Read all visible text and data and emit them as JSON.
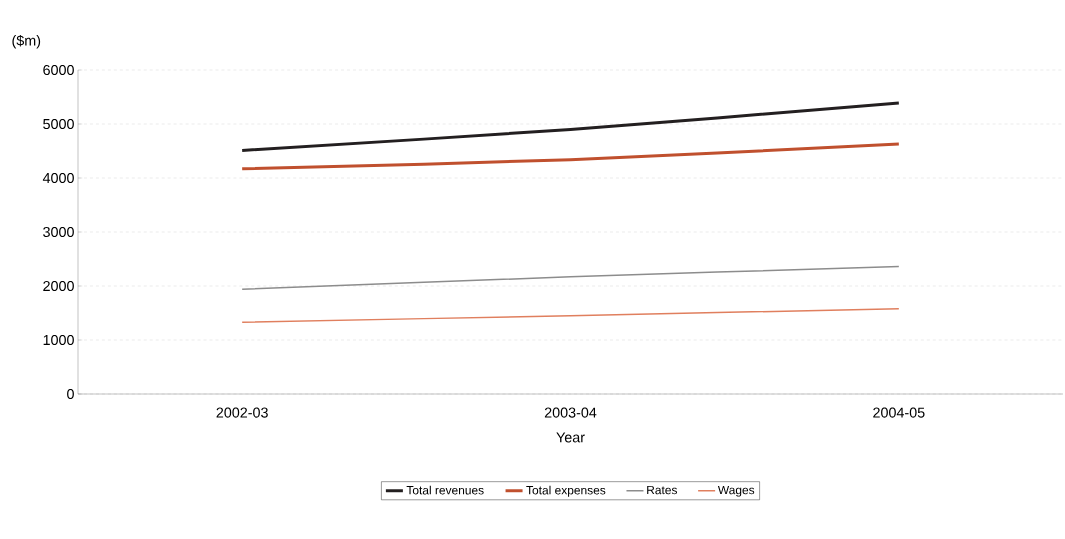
{
  "chart_data": {
    "type": "line",
    "xlabel": "Year",
    "ylabel": "($m)",
    "categories": [
      "2002-03",
      "2003-04",
      "2004-05"
    ],
    "series": [
      {
        "name": "Total revenues",
        "color": "#231f20",
        "values": [
          4510,
          4900,
          5390
        ]
      },
      {
        "name": "Total expenses",
        "color": "#c0502e",
        "values": [
          4170,
          4340,
          4630
        ]
      },
      {
        "name": "Rates",
        "color": "#8c8c8c",
        "values": [
          1940,
          2170,
          2360
        ]
      },
      {
        "name": "Wages",
        "color": "#e07f5e",
        "values": [
          1330,
          1450,
          1580
        ]
      }
    ],
    "ylim": [
      0,
      6000
    ],
    "yticks": [
      0,
      1000,
      2000,
      3000,
      4000,
      5000,
      6000
    ],
    "grid": "y",
    "legend": "bottom",
    "marker": "none",
    "line_style": "solid"
  }
}
